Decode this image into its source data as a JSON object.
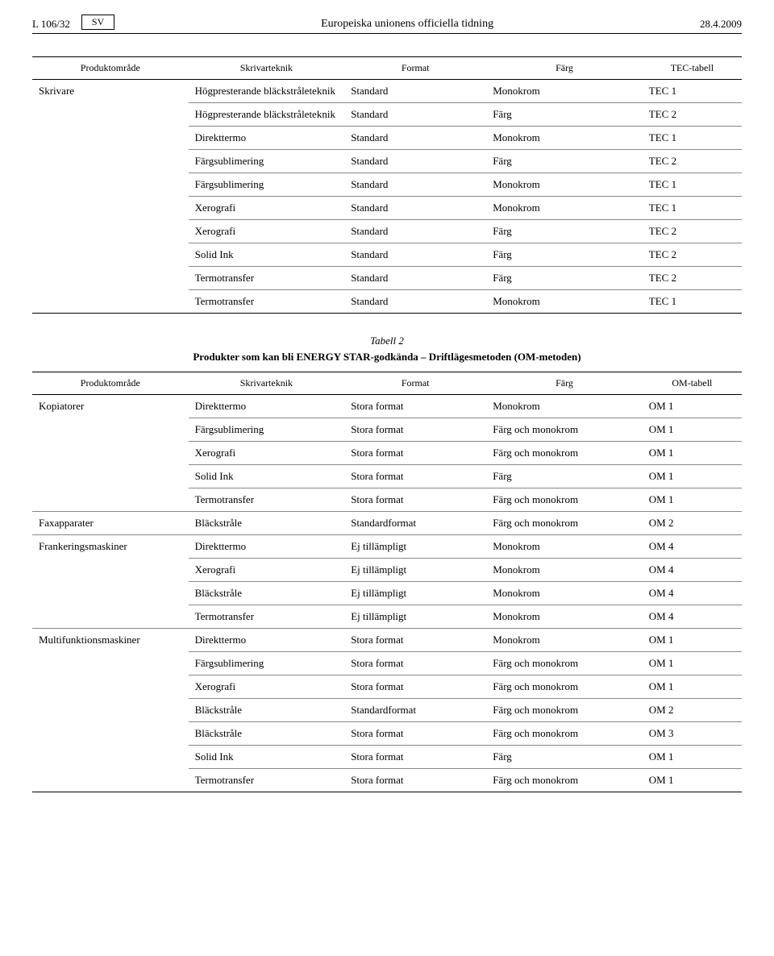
{
  "header": {
    "page_ref": "L 106/32",
    "lang": "SV",
    "journal": "Europeiska unionens officiella tidning",
    "date": "28.4.2009"
  },
  "table1": {
    "columns": [
      "Produktområde",
      "Skrivarteknik",
      "Format",
      "Färg",
      "TEC-tabell"
    ],
    "group_label": "Skrivare",
    "rows": [
      [
        "Högpresterande bläckstråleteknik",
        "Standard",
        "Monokrom",
        "TEC 1"
      ],
      [
        "Högpresterande bläckstråleteknik",
        "Standard",
        "Färg",
        "TEC 2"
      ],
      [
        "Direkttermo",
        "Standard",
        "Monokrom",
        "TEC 1"
      ],
      [
        "Färgsublimering",
        "Standard",
        "Färg",
        "TEC 2"
      ],
      [
        "Färgsublimering",
        "Standard",
        "Monokrom",
        "TEC 1"
      ],
      [
        "Xerografi",
        "Standard",
        "Monokrom",
        "TEC 1"
      ],
      [
        "Xerografi",
        "Standard",
        "Färg",
        "TEC 2"
      ],
      [
        "Solid Ink",
        "Standard",
        "Färg",
        "TEC 2"
      ],
      [
        "Termotransfer",
        "Standard",
        "Färg",
        "TEC 2"
      ],
      [
        "Termotransfer",
        "Standard",
        "Monokrom",
        "TEC 1"
      ]
    ]
  },
  "table2": {
    "label": "Tabell 2",
    "caption": "Produkter som kan bli ENERGY STAR-godkända – Driftlägesmetoden (OM-metoden)",
    "columns": [
      "Produktområde",
      "Skrivarteknik",
      "Format",
      "Färg",
      "OM-tabell"
    ],
    "groups": [
      {
        "label": "Kopiatorer",
        "rows": [
          [
            "Direkttermo",
            "Stora format",
            "Monokrom",
            "OM 1"
          ],
          [
            "Färgsublimering",
            "Stora format",
            "Färg och monokrom",
            "OM 1"
          ],
          [
            "Xerografi",
            "Stora format",
            "Färg och monokrom",
            "OM 1"
          ],
          [
            "Solid Ink",
            "Stora format",
            "Färg",
            "OM 1"
          ],
          [
            "Termotransfer",
            "Stora format",
            "Färg och monokrom",
            "OM 1"
          ]
        ]
      },
      {
        "label": "Faxapparater",
        "rows": [
          [
            "Bläckstråle",
            "Standardformat",
            "Färg och monokrom",
            "OM 2"
          ]
        ]
      },
      {
        "label": "Frankeringsmaskiner",
        "rows": [
          [
            "Direkttermo",
            "Ej tillämpligt",
            "Monokrom",
            "OM 4"
          ],
          [
            "Xerografi",
            "Ej tillämpligt",
            "Monokrom",
            "OM 4"
          ],
          [
            "Bläckstråle",
            "Ej tillämpligt",
            "Monokrom",
            "OM 4"
          ],
          [
            "Termotransfer",
            "Ej tillämpligt",
            "Monokrom",
            "OM 4"
          ]
        ]
      },
      {
        "label": "Multifunktionsmaskiner",
        "rows": [
          [
            "Direkttermo",
            "Stora format",
            "Monokrom",
            "OM 1"
          ],
          [
            "Färgsublimering",
            "Stora format",
            "Färg och monokrom",
            "OM 1"
          ],
          [
            "Xerografi",
            "Stora format",
            "Färg och monokrom",
            "OM 1"
          ],
          [
            "Bläckstråle",
            "Standardformat",
            "Färg och monokrom",
            "OM 2"
          ],
          [
            "Bläckstråle",
            "Stora format",
            "Färg och monokrom",
            "OM 3"
          ],
          [
            "Solid Ink",
            "Stora format",
            "Färg",
            "OM 1"
          ],
          [
            "Termotransfer",
            "Stora format",
            "Färg och monokrom",
            "OM 1"
          ]
        ]
      }
    ]
  }
}
